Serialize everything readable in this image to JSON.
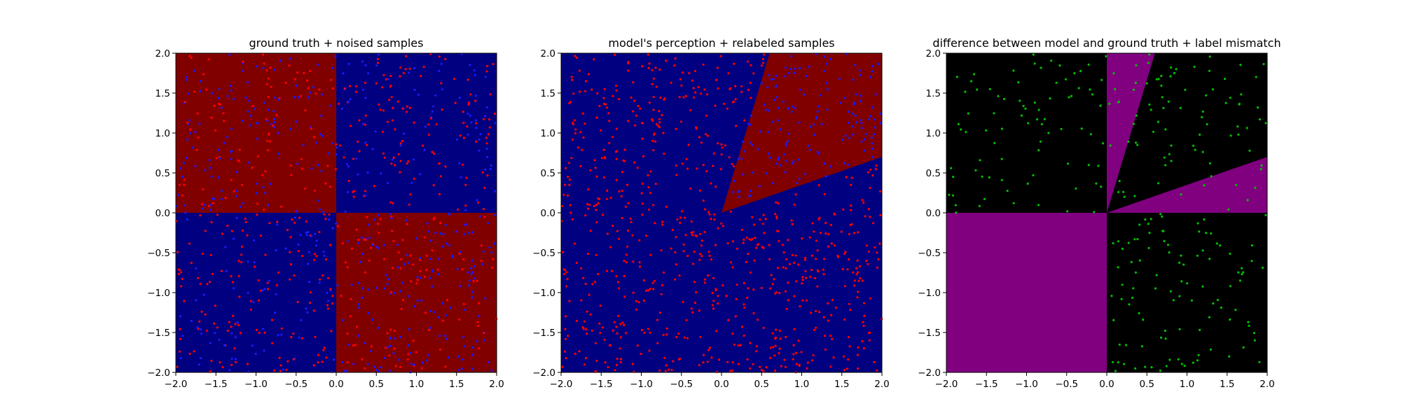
{
  "chart_data": [
    {
      "type": "scatter",
      "title": "ground truth + noised samples",
      "xlabel": "",
      "ylabel": "",
      "xlim": [
        -2.0,
        2.0
      ],
      "ylim": [
        -2.0,
        2.0
      ],
      "xticks": [
        "−2.0",
        "−1.5",
        "−1.0",
        "−0.5",
        "0.0",
        "0.5",
        "1.0",
        "1.5",
        "2.0"
      ],
      "yticks": [
        "−2.0",
        "−1.5",
        "−1.0",
        "−0.5",
        "0.0",
        "0.5",
        "1.0",
        "1.5",
        "2.0"
      ],
      "background": "quadrants: red where x*y < 0 (top-left, bottom-right), dark blue where x*y > 0 (top-right, bottom-left)",
      "colors": {
        "region_a": "#800000",
        "region_b": "#000080",
        "points_a": "#ff0000",
        "points_b": "#1a1aff"
      },
      "points_note": "~1000 uniformly scattered samples in [-2,2]^2; ground-truth labels with label noise, point color shows the (noised) label",
      "grid": false
    },
    {
      "type": "scatter",
      "title": "model's perception + relabeled samples",
      "xlabel": "",
      "ylabel": "",
      "xlim": [
        -2.0,
        2.0
      ],
      "ylim": [
        -2.0,
        2.0
      ],
      "xticks": [
        "−2.0",
        "−1.5",
        "−1.0",
        "−0.5",
        "0.0",
        "0.5",
        "1.0",
        "1.5",
        "2.0"
      ],
      "yticks": [
        "−2.0",
        "−1.5",
        "−1.0",
        "−0.5",
        "0.0",
        "0.5",
        "1.0",
        "1.5",
        "2.0"
      ],
      "background": "dark blue everywhere except a red wedge from origin between the rays through (0.6, 2.0) and (2.0, 0.7)",
      "wedge_rays": [
        [
          0.6,
          2.0
        ],
        [
          2.0,
          0.7
        ]
      ],
      "colors": {
        "region_a": "#800000",
        "region_b": "#000080",
        "points_a": "#ff0000",
        "points_b": "#1a1aff"
      },
      "points_note": "same samples, relabeled by the model: blue inside the wedge, red elsewhere",
      "grid": false
    },
    {
      "type": "scatter",
      "title": "difference between model and ground truth + label mismatch",
      "xlabel": "",
      "ylabel": "",
      "xlim": [
        -2.0,
        2.0
      ],
      "ylim": [
        -2.0,
        2.0
      ],
      "xticks": [
        "−2.0",
        "−1.5",
        "−1.0",
        "−0.5",
        "0.0",
        "0.5",
        "1.0",
        "1.5",
        "2.0"
      ],
      "yticks": [
        "−2.0",
        "−1.5",
        "−1.0",
        "−0.5",
        "0.0",
        "0.5",
        "1.0",
        "1.5",
        "2.0"
      ],
      "background": "purple where model and ground truth disagree (bottom-left quadrant, wedges between x=0 and ray (0.6,2.0), and between ray (2.0,0.7) and y=0), black elsewhere",
      "colors": {
        "agree": "#000000",
        "disagree": "#800080",
        "points": "#00c000"
      },
      "points_note": "green dots mark samples whose label mismatches; none fall in the bottom-left quadrant",
      "grid": false
    }
  ]
}
